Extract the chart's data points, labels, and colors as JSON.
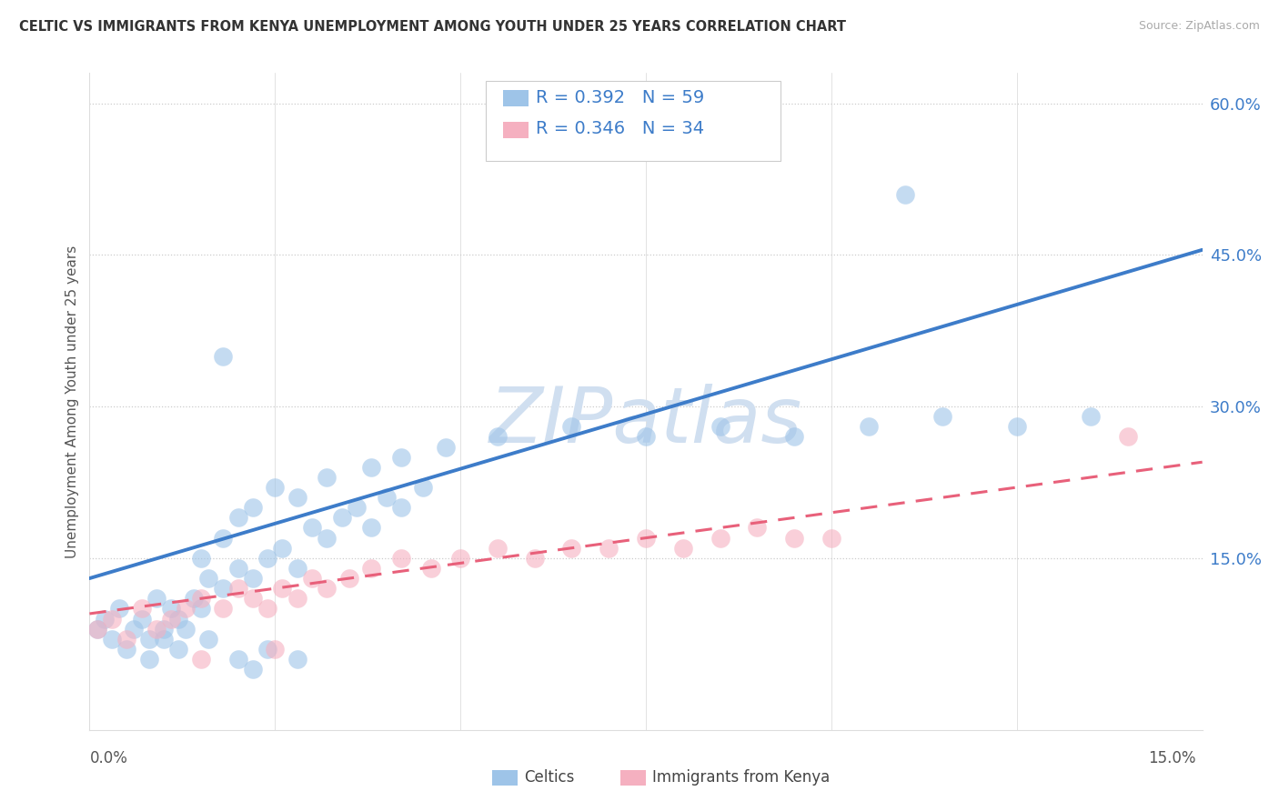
{
  "title": "CELTIC VS IMMIGRANTS FROM KENYA UNEMPLOYMENT AMONG YOUTH UNDER 25 YEARS CORRELATION CHART",
  "source": "Source: ZipAtlas.com",
  "ylabel": "Unemployment Among Youth under 25 years",
  "xlim": [
    0.0,
    0.15
  ],
  "ylim": [
    -0.02,
    0.63
  ],
  "yticks_right": [
    0.15,
    0.3,
    0.45,
    0.6
  ],
  "ytick_labels": [
    "15.0%",
    "30.0%",
    "45.0%",
    "60.0%"
  ],
  "xtick_labels_show": [
    "0.0%",
    "15.0%"
  ],
  "R1": 0.392,
  "N1": 59,
  "R2": 0.346,
  "N2": 34,
  "color1": "#9ec4e8",
  "color2": "#f5b0c0",
  "trendline1_color": "#3d7cc9",
  "trendline2_color": "#e8607a",
  "watermark": "ZIPatlas",
  "watermark_color": "#d0dff0",
  "celtics_x": [
    0.001,
    0.002,
    0.003,
    0.004,
    0.005,
    0.006,
    0.007,
    0.008,
    0.009,
    0.01,
    0.011,
    0.012,
    0.013,
    0.014,
    0.015,
    0.016,
    0.018,
    0.02,
    0.022,
    0.024,
    0.026,
    0.028,
    0.03,
    0.032,
    0.034,
    0.036,
    0.038,
    0.04,
    0.042,
    0.045,
    0.015,
    0.018,
    0.02,
    0.022,
    0.025,
    0.028,
    0.032,
    0.038,
    0.042,
    0.048,
    0.055,
    0.065,
    0.075,
    0.085,
    0.095,
    0.105,
    0.115,
    0.125,
    0.135,
    0.008,
    0.01,
    0.012,
    0.016,
    0.02,
    0.024,
    0.028,
    0.11,
    0.018,
    0.022
  ],
  "celtics_y": [
    0.08,
    0.09,
    0.07,
    0.1,
    0.06,
    0.08,
    0.09,
    0.07,
    0.11,
    0.08,
    0.1,
    0.09,
    0.08,
    0.11,
    0.1,
    0.13,
    0.12,
    0.14,
    0.13,
    0.15,
    0.16,
    0.14,
    0.18,
    0.17,
    0.19,
    0.2,
    0.18,
    0.21,
    0.2,
    0.22,
    0.15,
    0.17,
    0.19,
    0.2,
    0.22,
    0.21,
    0.23,
    0.24,
    0.25,
    0.26,
    0.27,
    0.28,
    0.27,
    0.28,
    0.27,
    0.28,
    0.29,
    0.28,
    0.29,
    0.05,
    0.07,
    0.06,
    0.07,
    0.05,
    0.06,
    0.05,
    0.51,
    0.35,
    0.04
  ],
  "kenya_x": [
    0.001,
    0.003,
    0.005,
    0.007,
    0.009,
    0.011,
    0.013,
    0.015,
    0.018,
    0.02,
    0.022,
    0.024,
    0.026,
    0.028,
    0.03,
    0.032,
    0.035,
    0.038,
    0.042,
    0.046,
    0.05,
    0.055,
    0.06,
    0.065,
    0.07,
    0.075,
    0.08,
    0.085,
    0.09,
    0.095,
    0.1,
    0.015,
    0.025,
    0.14
  ],
  "kenya_y": [
    0.08,
    0.09,
    0.07,
    0.1,
    0.08,
    0.09,
    0.1,
    0.11,
    0.1,
    0.12,
    0.11,
    0.1,
    0.12,
    0.11,
    0.13,
    0.12,
    0.13,
    0.14,
    0.15,
    0.14,
    0.15,
    0.16,
    0.15,
    0.16,
    0.16,
    0.17,
    0.16,
    0.17,
    0.18,
    0.17,
    0.17,
    0.05,
    0.06,
    0.27
  ]
}
